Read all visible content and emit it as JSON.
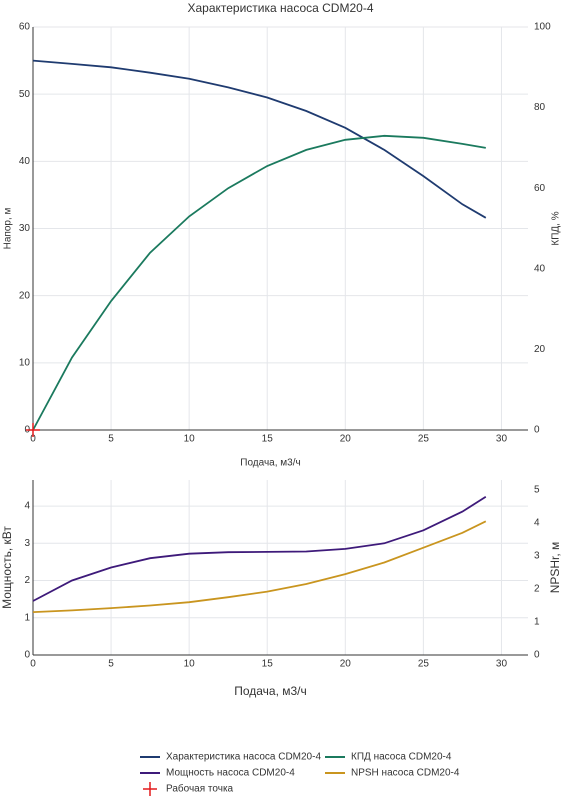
{
  "chart_data": [
    {
      "type": "line",
      "title": "Характеристика насоса CDM20-4",
      "xlabel": "Подача, м3/ч",
      "ylabel": "Напор, м",
      "y2label": "КПД, %",
      "xlim": [
        0,
        31.7
      ],
      "xticks": [
        0,
        5,
        10,
        15,
        20,
        25,
        30
      ],
      "ylim": [
        0,
        60
      ],
      "yticks": [
        0,
        10,
        20,
        30,
        40,
        50,
        60
      ],
      "y2lim": [
        0,
        100
      ],
      "y2ticks": [
        0,
        20,
        40,
        60,
        80,
        100
      ],
      "grid": true,
      "series": [
        {
          "name": "Характеристика насоса CDM20-4",
          "color": "#1f3b70",
          "x": [
            0,
            2.5,
            5,
            7.5,
            10,
            12.5,
            15,
            17.5,
            20,
            22.5,
            25,
            27.5,
            29
          ],
          "values": [
            55,
            54.5,
            54,
            53.2,
            52.3,
            51,
            49.5,
            47.5,
            45,
            41.7,
            37.8,
            33.6,
            31.6
          ]
        },
        {
          "name": "КПД насоса CDM20-4",
          "color": "#1b7a5e",
          "axis": "y2",
          "x": [
            0,
            2.5,
            5,
            7.5,
            10,
            12.5,
            15,
            17.5,
            20,
            22.5,
            25,
            27.5,
            29
          ],
          "values": [
            0,
            18,
            32,
            44,
            53,
            60,
            65.5,
            69.5,
            72,
            73,
            72.5,
            71,
            70
          ]
        },
        {
          "name": "Рабочая точка",
          "color": "#e31a1c",
          "type": "scatter",
          "x": [
            0
          ],
          "values": [
            0
          ]
        }
      ]
    },
    {
      "type": "line",
      "xlabel": "Подача, м3/ч",
      "ylabel": "Мощность, кВт",
      "y2label": "NPSHr, м",
      "xlim": [
        0,
        31.7
      ],
      "xticks": [
        0,
        5,
        10,
        15,
        20,
        25,
        30
      ],
      "ylim": [
        0,
        4.7
      ],
      "yticks": [
        0,
        1,
        2,
        3,
        4
      ],
      "y2lim": [
        0,
        5.3
      ],
      "y2ticks": [
        0,
        1,
        2,
        3,
        4,
        5
      ],
      "grid": true,
      "series": [
        {
          "name": "Мощность насоса CDM20-4",
          "color": "#3e1a7a",
          "x": [
            0,
            2.5,
            5,
            7.5,
            10,
            12.5,
            15,
            17.5,
            20,
            22.5,
            25,
            27.5,
            29
          ],
          "values": [
            1.45,
            2.0,
            2.35,
            2.6,
            2.72,
            2.76,
            2.77,
            2.78,
            2.85,
            3.0,
            3.35,
            3.85,
            4.25
          ]
        },
        {
          "name": "NPSH насоса CDM20-4",
          "color": "#c9951f",
          "axis": "y2",
          "x": [
            0,
            2.5,
            5,
            7.5,
            10,
            12.5,
            15,
            17.5,
            20,
            22.5,
            25,
            27.5,
            29
          ],
          "values": [
            1.3,
            1.35,
            1.42,
            1.5,
            1.6,
            1.75,
            1.92,
            2.15,
            2.45,
            2.8,
            3.25,
            3.7,
            4.05
          ]
        }
      ]
    }
  ]
}
